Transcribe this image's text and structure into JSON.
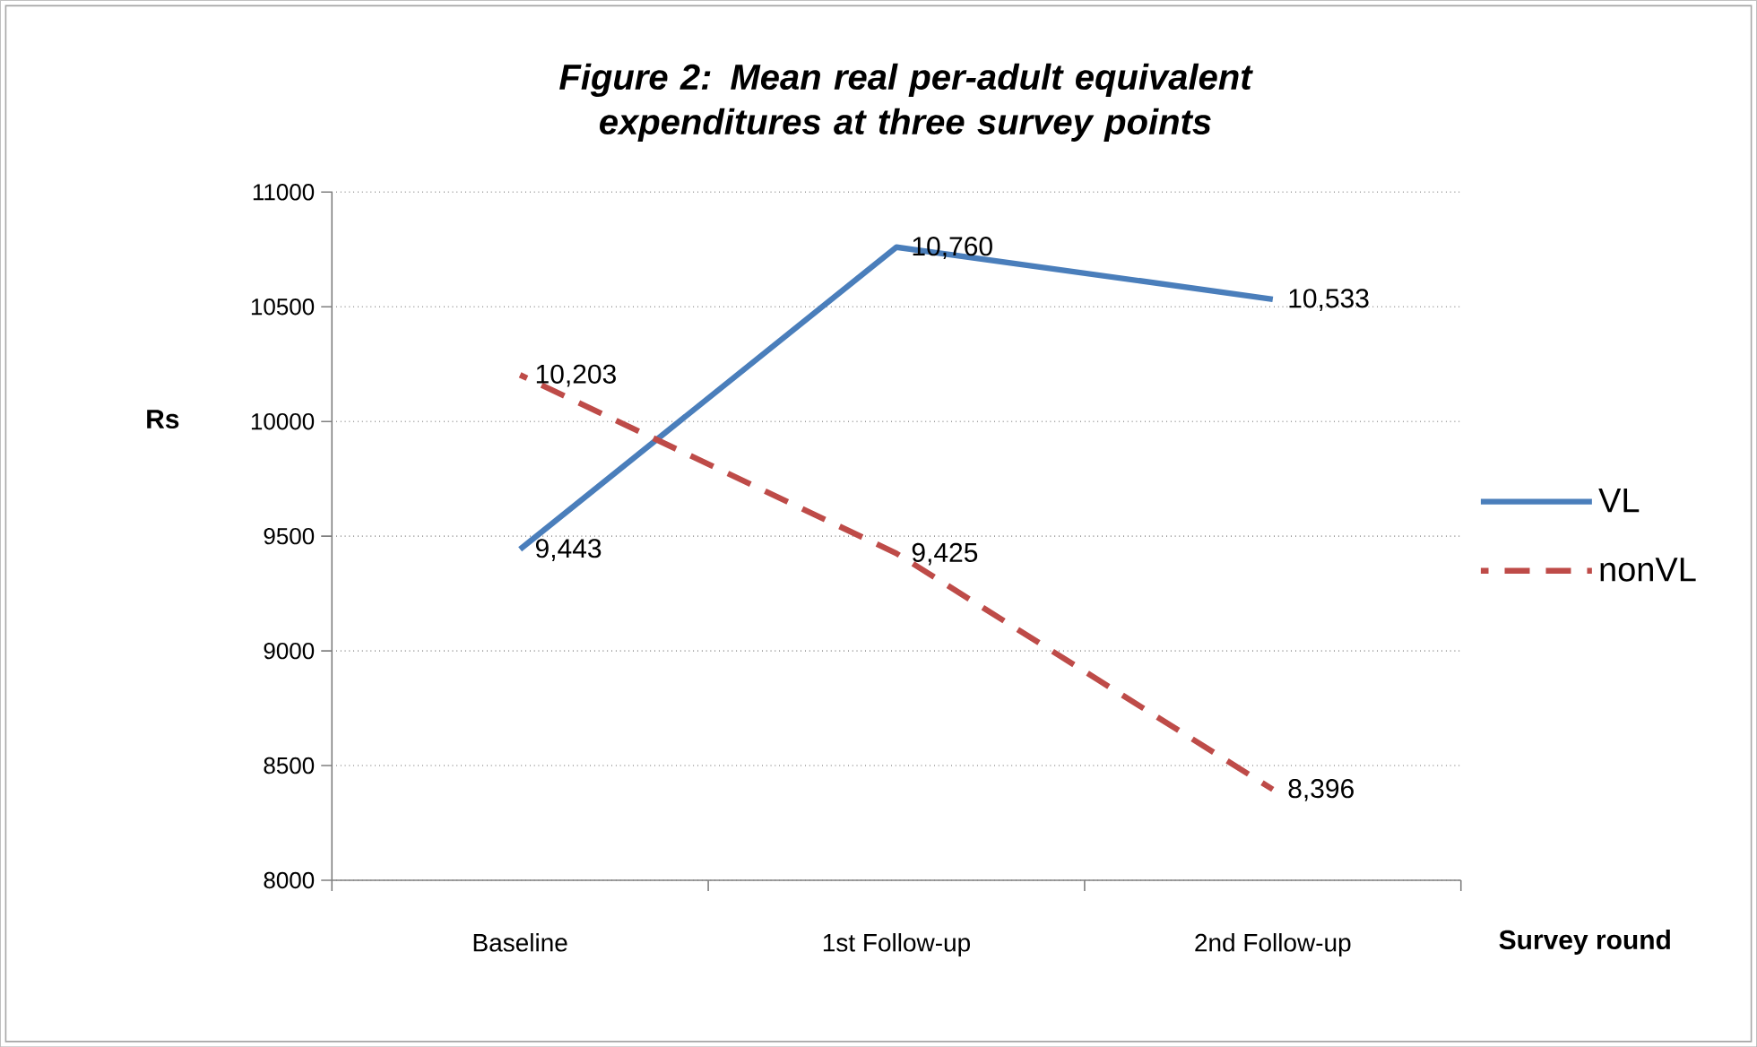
{
  "chart_data": {
    "type": "line",
    "title": "Figure 2: Mean real per-adult equivalent expenditures at three survey points",
    "xlabel": "Survey round",
    "ylabel": "Rs",
    "categories": [
      "Baseline",
      "1st Follow-up",
      "2nd Follow-up"
    ],
    "series": [
      {
        "name": "VL",
        "color": "#4a7ebb",
        "line_style": "solid",
        "values": [
          9443,
          10760,
          10533
        ],
        "value_labels": [
          "9,443",
          "10,760",
          "10,533"
        ]
      },
      {
        "name": "nonVL",
        "color": "#be4b48",
        "line_style": "dashed",
        "values": [
          10203,
          9425,
          8396
        ],
        "value_labels": [
          "10,203",
          "9,425",
          "8,396"
        ]
      }
    ],
    "ylim": [
      8000,
      11000
    ],
    "yticks": [
      8000,
      8500,
      9000,
      9500,
      10000,
      10500,
      11000
    ],
    "grid": "y",
    "legend": "right",
    "marker": "none"
  }
}
